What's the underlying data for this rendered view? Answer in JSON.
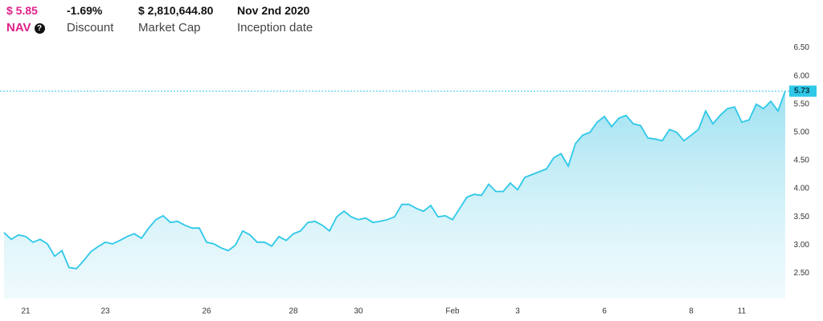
{
  "stats": [
    {
      "value": "$ 5.85",
      "label": "NAV"
    },
    {
      "value": "-1.69%",
      "label": "Discount"
    },
    {
      "value": "$ 2,810,644.80",
      "label": "Market Cap"
    },
    {
      "value": "Nov 2nd 2020",
      "label": "Inception date"
    }
  ],
  "chart_data": {
    "type": "area",
    "color": "#2ec8e8",
    "categories": [
      null,
      null,
      null,
      "21",
      null,
      null,
      null,
      null,
      null,
      null,
      null,
      null,
      null,
      null,
      "23",
      null,
      null,
      null,
      null,
      null,
      null,
      null,
      null,
      null,
      null,
      null,
      null,
      null,
      "26",
      null,
      null,
      null,
      null,
      null,
      null,
      null,
      null,
      null,
      null,
      null,
      "28",
      null,
      null,
      null,
      null,
      null,
      null,
      null,
      null,
      "30",
      null,
      null,
      null,
      null,
      null,
      null,
      null,
      null,
      null,
      null,
      null,
      null,
      "Feb",
      null,
      null,
      null,
      null,
      null,
      null,
      null,
      null,
      "3",
      null,
      null,
      null,
      null,
      null,
      null,
      null,
      null,
      null,
      null,
      null,
      "6",
      null,
      null,
      null,
      null,
      null,
      null,
      null,
      null,
      null,
      null,
      null,
      "8",
      null,
      null,
      null,
      null,
      null,
      null,
      "11",
      null,
      null,
      null,
      null,
      null,
      null
    ],
    "values": [
      3.22,
      3.1,
      3.18,
      3.15,
      3.05,
      3.1,
      3.02,
      2.8,
      2.9,
      2.6,
      2.58,
      2.72,
      2.88,
      2.97,
      3.05,
      3.02,
      3.08,
      3.15,
      3.2,
      3.12,
      3.3,
      3.45,
      3.52,
      3.4,
      3.42,
      3.35,
      3.3,
      3.3,
      3.05,
      3.02,
      2.95,
      2.9,
      3.0,
      3.25,
      3.18,
      3.05,
      3.05,
      2.98,
      3.15,
      3.08,
      3.2,
      3.25,
      3.4,
      3.42,
      3.35,
      3.25,
      3.5,
      3.6,
      3.5,
      3.45,
      3.48,
      3.4,
      3.42,
      3.45,
      3.5,
      3.72,
      3.72,
      3.65,
      3.6,
      3.7,
      3.5,
      3.52,
      3.45,
      3.65,
      3.85,
      3.9,
      3.88,
      4.08,
      3.95,
      3.95,
      4.1,
      3.98,
      4.2,
      4.25,
      4.3,
      4.35,
      4.55,
      4.62,
      4.4,
      4.8,
      4.95,
      5.0,
      5.18,
      5.28,
      5.1,
      5.25,
      5.3,
      5.15,
      5.12,
      4.9,
      4.88,
      4.85,
      5.05,
      5.0,
      4.85,
      4.95,
      5.05,
      5.38,
      5.15,
      5.3,
      5.42,
      5.45,
      5.18,
      5.22,
      5.5,
      5.42,
      5.55,
      5.38,
      5.73
    ],
    "ylim": [
      2.05,
      6.65
    ],
    "yticks": [
      {
        "value": 2.5,
        "label": "2.50"
      },
      {
        "value": 3,
        "label": "3.00"
      },
      {
        "value": 3.5,
        "label": "3.50"
      },
      {
        "value": 4,
        "label": "4.00"
      },
      {
        "value": 4.5,
        "label": "4.50"
      },
      {
        "value": 5,
        "label": "5.00"
      },
      {
        "value": 5.5,
        "label": "5.50"
      },
      {
        "value": 6,
        "label": "6.00"
      },
      {
        "value": 6.5,
        "label": "6.50"
      }
    ],
    "grid": false
  }
}
